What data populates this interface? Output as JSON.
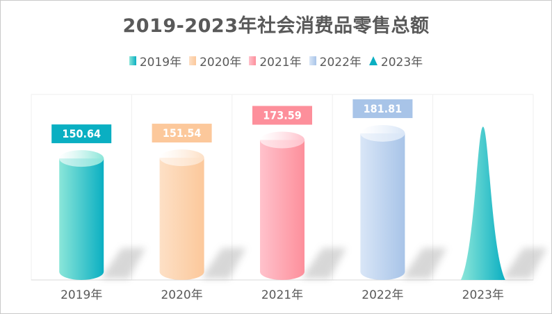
{
  "chart_data": {
    "type": "bar",
    "title": "2019-2023年社会消费品零售总额",
    "categories": [
      "2019年",
      "2020年",
      "2021年",
      "2022年",
      "2023年"
    ],
    "values": [
      150.64,
      151.54,
      173.59,
      181.81,
      190
    ],
    "data_labels": [
      "150.64",
      "151.54",
      "173.59",
      "181.81",
      ""
    ],
    "legend": [
      "2019年",
      "2020年",
      "2021年",
      "2022年",
      "2023年"
    ],
    "legend_position": "top",
    "ylim": [
      0,
      230
    ],
    "grid": "vertical",
    "colors": [
      "#0aafc2",
      "#fcc89b",
      "#fd8f9b",
      "#a8c4e8",
      "#0aafc2"
    ],
    "light_colors": [
      "#8be6d9",
      "#fde0c6",
      "#ffc2cc",
      "#d9e6f7",
      "#8be6d9"
    ],
    "shapes": [
      "cylinder",
      "cylinder",
      "cylinder",
      "cylinder",
      "cone"
    ]
  }
}
